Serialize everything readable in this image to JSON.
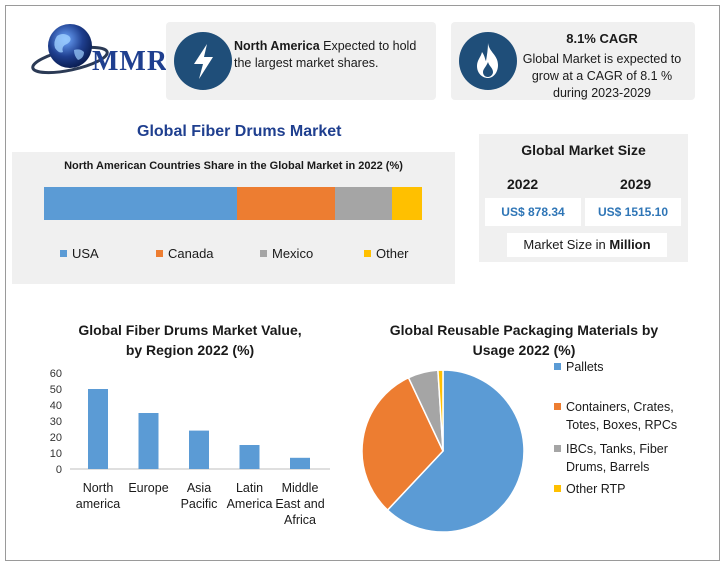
{
  "brand": {
    "name": "MMR"
  },
  "cards": {
    "north_america": {
      "bold": "North America",
      "text": " Expected to hold the largest market shares."
    },
    "cagr": {
      "title": "8.1% CAGR",
      "text": "Global Market is expected to grow at a CAGR of 8.1 % during 2023-2029"
    }
  },
  "main_title": "Global Fiber Drums Market",
  "market_size": {
    "title": "Global Market Size",
    "year1": "2022",
    "value1": "US$ 878.34",
    "year2": "2029",
    "value2": "US$ 1515.10",
    "unit_prefix": "Market Size in ",
    "unit_bold": "Million"
  },
  "colors": {
    "usa": "#5b9bd5",
    "canada": "#ed7d31",
    "mexico": "#a5a5a5",
    "other": "#ffc000",
    "navy": "#1f4e79"
  },
  "chart_data": [
    {
      "type": "bar",
      "stacked": true,
      "title": "North American Countries Share in the Global Market in 2022 (%)",
      "categories": [
        "USA",
        "Canada",
        "Mexico",
        "Other"
      ],
      "values": [
        51,
        26,
        15,
        8
      ],
      "legend": "bottom"
    },
    {
      "type": "bar",
      "title_line1": "Global Fiber Drums Market Value,",
      "title_line2": "by Region 2022 (%)",
      "categories": [
        [
          "North",
          "america"
        ],
        [
          "Europe"
        ],
        [
          "Asia",
          "Pacific"
        ],
        [
          "Latin",
          "America"
        ],
        [
          "Middle",
          "East and",
          "Africa"
        ]
      ],
      "values": [
        50,
        35,
        24,
        15,
        7
      ],
      "yticks": [
        0,
        10,
        20,
        30,
        40,
        50,
        60
      ],
      "ylim": [
        0,
        60
      ],
      "grid": false
    },
    {
      "type": "pie",
      "title_line1": "Global Reusable Packaging Materials by",
      "title_line2": "Usage 2022 (%)",
      "slices": [
        {
          "label": [
            "Pallets"
          ],
          "value": 62,
          "color": "#5b9bd5"
        },
        {
          "label": [
            "Containers, Crates,",
            "Totes, Boxes, RPCs"
          ],
          "value": 31,
          "color": "#ed7d31"
        },
        {
          "label": [
            "IBCs, Tanks, Fiber",
            "Drums, Barrels"
          ],
          "value": 6,
          "color": "#a5a5a5"
        },
        {
          "label": [
            "Other RTP"
          ],
          "value": 1,
          "color": "#ffc000"
        }
      ],
      "legend": "right"
    }
  ]
}
